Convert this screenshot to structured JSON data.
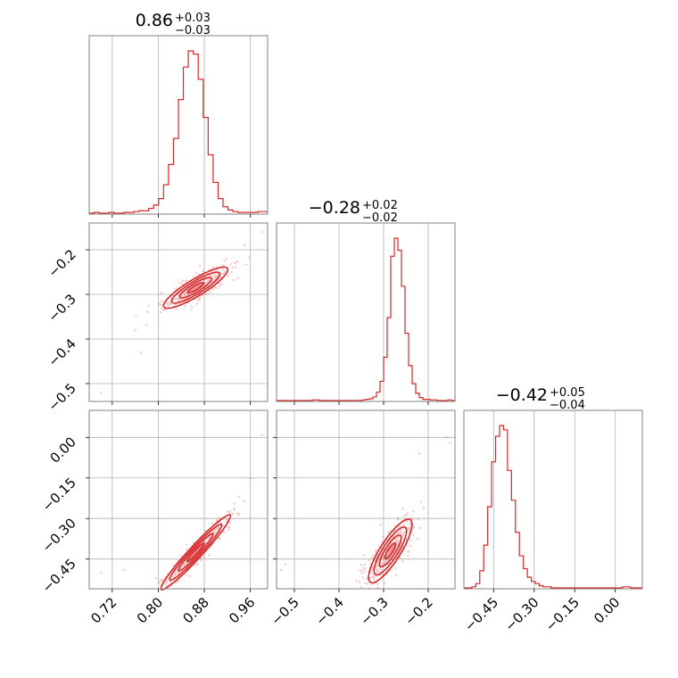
{
  "chart_data": {
    "type": "corner",
    "color": "#d62728",
    "parameters": [
      {
        "title": "0.86",
        "err_plus": "+0.03",
        "err_minus": "−0.03",
        "median": 0.86,
        "range": [
          0.68,
          0.99
        ],
        "ticks": [
          0.72,
          0.8,
          0.88,
          0.96
        ],
        "tick_labels": [
          "0.72",
          "0.80",
          "0.88",
          "0.96"
        ],
        "sigma": 0.028
      },
      {
        "title": "−0.28",
        "err_plus": "+0.02",
        "err_minus": "−0.02",
        "median": -0.28,
        "range": [
          -0.54,
          -0.14
        ],
        "ticks": [
          -0.5,
          -0.4,
          -0.3,
          -0.2
        ],
        "tick_labels": [
          "−0.5",
          "−0.4",
          "−0.3",
          "−0.2"
        ],
        "sigma": 0.02
      },
      {
        "title": "−0.42",
        "err_plus": "+0.05",
        "err_minus": "−0.04",
        "median": -0.42,
        "range": [
          -0.56,
          0.1
        ],
        "ticks": [
          -0.45,
          -0.3,
          -0.15,
          0.0
        ],
        "tick_labels": [
          "−0.45",
          "−0.30",
          "−0.15",
          "0.00"
        ],
        "sigma": 0.045
      }
    ],
    "histograms": [
      {
        "bins": [
          0.68,
          0.99
        ],
        "counts": [
          0,
          1,
          0,
          0,
          1,
          0,
          0,
          1,
          1,
          2,
          3,
          3,
          6,
          10,
          18,
          35,
          60,
          92,
          140,
          180,
          200,
          196,
          165,
          118,
          72,
          38,
          18,
          8,
          4,
          2,
          1,
          1,
          1,
          1,
          2,
          2
        ]
      },
      {
        "bins": [
          -0.54,
          -0.14
        ],
        "counts": [
          0,
          0,
          0,
          0,
          0,
          0,
          0,
          0,
          0,
          0,
          1,
          1,
          0,
          0,
          0,
          0,
          0,
          0,
          0,
          0,
          0,
          0,
          0,
          0,
          1,
          2,
          3,
          6,
          14,
          32,
          72,
          138,
          240,
          270,
          250,
          190,
          112,
          58,
          28,
          12,
          5,
          2,
          2,
          1,
          1,
          0,
          0,
          0,
          1,
          0
        ]
      },
      {
        "bins": [
          -0.56,
          0.1
        ],
        "counts": [
          0,
          0,
          1,
          4,
          16,
          40,
          76,
          118,
          142,
          152,
          148,
          110,
          82,
          52,
          30,
          18,
          10,
          6,
          4,
          2,
          1,
          1,
          0,
          0,
          0,
          0,
          0,
          0,
          0,
          0,
          0,
          0,
          0,
          0,
          0,
          0,
          0,
          0,
          0,
          0,
          1,
          1,
          0,
          0,
          0
        ]
      }
    ],
    "pairs": [
      {
        "x_param": 0,
        "y_param": 1,
        "center": [
          0.865,
          -0.285
        ],
        "slope": 0.78,
        "major_sigma": 0.035,
        "minor_sigma": 0.0085,
        "outliers": [
          [
            0.7,
            -0.52
          ],
          [
            0.77,
            -0.43
          ],
          [
            0.98,
            -0.16
          ],
          [
            0.95,
            -0.19
          ]
        ]
      },
      {
        "x_param": 0,
        "y_param": 2,
        "center": [
          0.865,
          -0.425
        ],
        "slope": 2.3,
        "major_sigma": 0.075,
        "minor_sigma": 0.006,
        "outliers": [
          [
            0.7,
            -0.5
          ],
          [
            0.74,
            -0.49
          ],
          [
            0.98,
            0.01
          ],
          [
            0.96,
            -0.15
          ],
          [
            0.94,
            -0.22
          ]
        ]
      },
      {
        "x_param": 1,
        "y_param": 2,
        "center": [
          -0.285,
          -0.42
        ],
        "slope": 2.6,
        "major_sigma": 0.062,
        "minor_sigma": 0.012,
        "outliers": [
          [
            -0.53,
            -0.49
          ],
          [
            -0.52,
            -0.47
          ],
          [
            -0.16,
            0.0
          ],
          [
            -0.15,
            -0.02
          ],
          [
            -0.22,
            -0.06
          ]
        ]
      }
    ],
    "grid": true
  }
}
